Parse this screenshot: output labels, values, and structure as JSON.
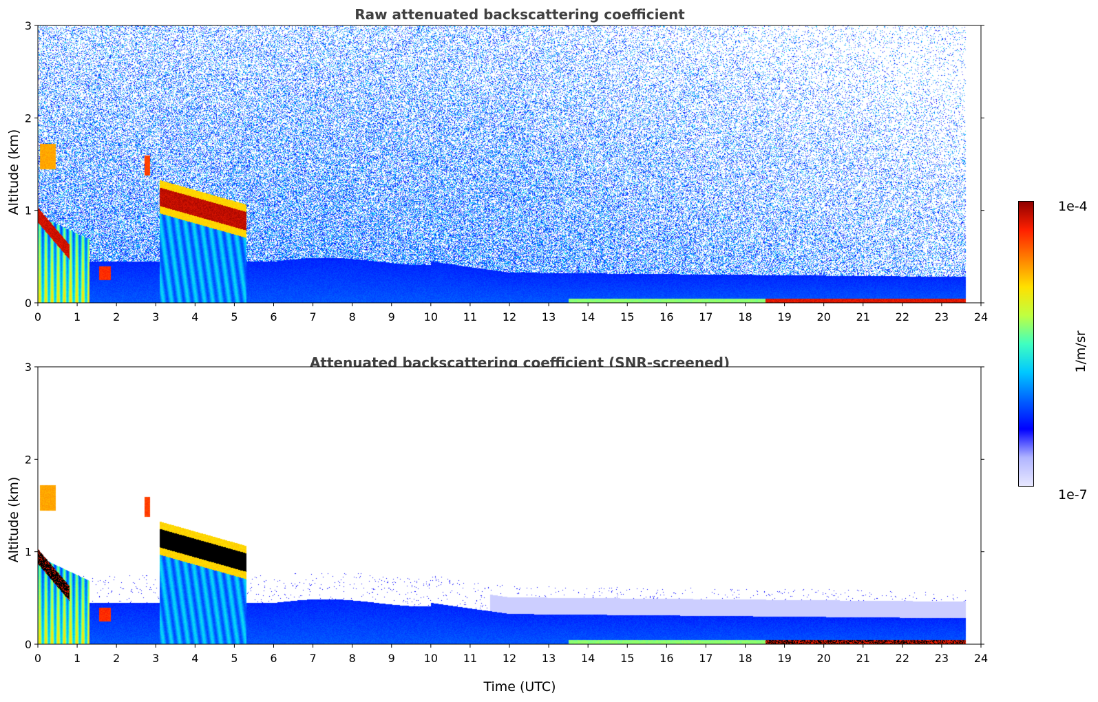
{
  "chart_data": [
    {
      "type": "heatmap",
      "title": "Raw attenuated backscattering coefficient",
      "xlabel": "",
      "ylabel": "Altitude (km)",
      "xlim": [
        0,
        24
      ],
      "ylim": [
        0,
        3
      ],
      "xticks": [
        "0",
        "1",
        "2",
        "3",
        "4",
        "5",
        "6",
        "7",
        "8",
        "9",
        "10",
        "11",
        "12",
        "13",
        "14",
        "15",
        "16",
        "17",
        "18",
        "19",
        "20",
        "21",
        "22",
        "23",
        "24"
      ],
      "yticks": [
        "0",
        "1",
        "2",
        "3"
      ],
      "features": [
        {
          "name": "low cloud 0-1.5h",
          "x": [
            0,
            1.5
          ],
          "y": [
            0,
            1.0
          ],
          "level": "high"
        },
        {
          "name": "elevated cloud layer",
          "x": [
            3.1,
            5.3
          ],
          "y": [
            0.8,
            1.3
          ],
          "level": "saturated"
        },
        {
          "name": "boundary layer aerosol",
          "x": [
            1.5,
            23.6
          ],
          "y": [
            0,
            0.5
          ],
          "level": "moderate"
        },
        {
          "name": "near-surface layer",
          "x": [
            18.5,
            23.6
          ],
          "y": [
            0,
            0.05
          ],
          "level": "saturated"
        }
      ]
    },
    {
      "type": "heatmap",
      "title": "Attenuated backscattering coefficient (SNR-screened)",
      "xlabel": "Time (UTC)",
      "ylabel": "Altitude (km)",
      "xlim": [
        0,
        24
      ],
      "ylim": [
        0,
        3
      ],
      "xticks": [
        "0",
        "1",
        "2",
        "3",
        "4",
        "5",
        "6",
        "7",
        "8",
        "9",
        "10",
        "11",
        "12",
        "13",
        "14",
        "15",
        "16",
        "17",
        "18",
        "19",
        "20",
        "21",
        "22",
        "23",
        "24"
      ],
      "yticks": [
        "0",
        "1",
        "2",
        "3"
      ]
    }
  ],
  "colorbar": {
    "max_label": "1e-4",
    "min_label": "1e-7",
    "unit": "1/m/sr",
    "colors": [
      "#e8e8ff",
      "#b0b4ff",
      "#0000ff",
      "#0060ff",
      "#00c8ff",
      "#40ffc0",
      "#c0ff40",
      "#ffe000",
      "#ff8000",
      "#ff2000",
      "#900000"
    ]
  }
}
